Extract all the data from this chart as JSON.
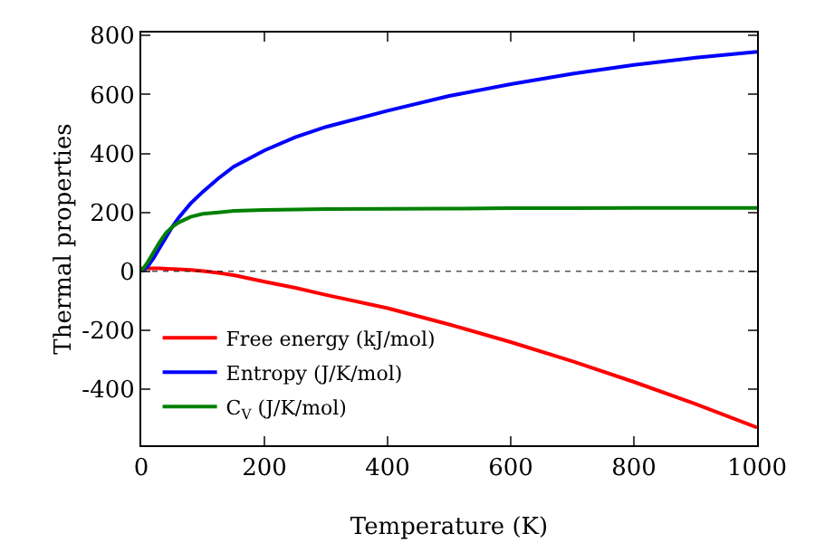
{
  "chart_data": {
    "type": "line",
    "xlabel": "Temperature (K)",
    "ylabel": "Thermal properties",
    "xlim": [
      0,
      1000
    ],
    "xticks": [
      0,
      200,
      400,
      600,
      800,
      1000
    ],
    "ylim": [
      -590,
      810
    ],
    "yticks": [
      -400,
      -200,
      0,
      200,
      400,
      600,
      800
    ],
    "x": [
      0,
      10,
      20,
      30,
      40,
      50,
      60,
      80,
      100,
      125,
      150,
      200,
      250,
      300,
      400,
      500,
      600,
      700,
      800,
      900,
      1000
    ],
    "series": [
      {
        "name": "Free energy (kJ/mol)",
        "color": "#ff0000",
        "values": [
          10,
          10,
          10,
          10,
          9,
          8,
          7,
          5,
          1,
          -5,
          -13,
          -35,
          -56,
          -80,
          -125,
          -180,
          -240,
          -305,
          -375,
          -450,
          -530
        ]
      },
      {
        "name": "Entropy (J/K/mol)",
        "color": "#0000ff",
        "values": [
          0,
          15,
          45,
          80,
          115,
          150,
          180,
          230,
          270,
          315,
          355,
          410,
          455,
          490,
          545,
          595,
          635,
          670,
          700,
          725,
          745
        ]
      },
      {
        "name": "C$_{V}$ (J/K/mol)",
        "color": "#008000",
        "values": [
          0,
          30,
          65,
          100,
          130,
          150,
          165,
          185,
          195,
          200,
          205,
          208,
          210,
          211,
          212,
          213,
          214,
          214,
          215,
          215,
          215
        ]
      }
    ],
    "ref_lines": [
      {
        "axis": "y",
        "value": 0,
        "color": "#000000",
        "line_style": "dotted"
      }
    ],
    "legend": "bottom left",
    "grid": false
  }
}
